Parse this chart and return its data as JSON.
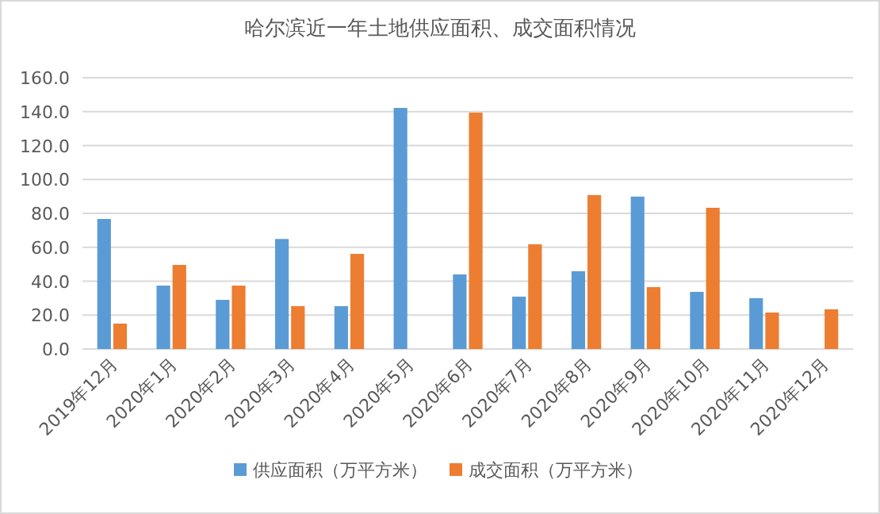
{
  "chart_data": {
    "type": "bar",
    "title": "哈尔滨近一年土地供应面积、成交面积情况",
    "categories": [
      "2019年12月",
      "2020年1月",
      "2020年2月",
      "2020年3月",
      "2020年4月",
      "2020年5月",
      "2020年6月",
      "2020年7月",
      "2020年8月",
      "2020年9月",
      "2020年10月",
      "2020年11月",
      "2020年12月"
    ],
    "series": [
      {
        "name": "供应面积（万平方米）",
        "color": "#5b9bd5",
        "values": [
          76.7,
          37.4,
          29,
          64.9,
          25.3,
          142.2,
          44,
          30.9,
          45.9,
          89.9,
          33.7,
          30,
          null
        ]
      },
      {
        "name": "成交面积（万平方米）",
        "color": "#ed7d31",
        "values": [
          15,
          49.6,
          37.4,
          25.3,
          56.1,
          null,
          139.4,
          61.8,
          90.8,
          36.5,
          83.3,
          21.5,
          23.4
        ]
      }
    ],
    "ylim": [
      0,
      160
    ],
    "yticks": [
      {
        "value": 0,
        "label": "0.0"
      },
      {
        "value": 20,
        "label": "20.0"
      },
      {
        "value": 40,
        "label": "40.0"
      },
      {
        "value": 60,
        "label": "60.0"
      },
      {
        "value": 80,
        "label": "80.0"
      },
      {
        "value": 100,
        "label": "100.0"
      },
      {
        "value": 120,
        "label": "120.0"
      },
      {
        "value": 140,
        "label": "140.0"
      },
      {
        "value": 160,
        "label": "160.0"
      }
    ],
    "grid": "y",
    "legend": "bottom"
  }
}
